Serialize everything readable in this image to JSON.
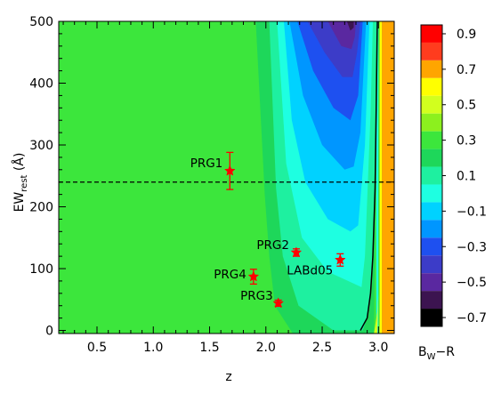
{
  "chart_data": {
    "type": "contour",
    "title": "",
    "x_axis": {
      "label": "z",
      "range": [
        0.16,
        3.14
      ],
      "ticks": [
        0.5,
        1.0,
        1.5,
        2.0,
        2.5,
        3.0
      ],
      "tick_labels": [
        "0.5",
        "1.0",
        "1.5",
        "2.0",
        "2.5",
        "3.0"
      ]
    },
    "y_axis": {
      "label_main": "EW",
      "label_sub": "rest",
      "label_unit": " (Å)",
      "range": [
        -5,
        500
      ],
      "ticks": [
        0,
        100,
        200,
        300,
        400,
        500
      ],
      "tick_labels": [
        "0",
        "100",
        "200",
        "300",
        "400",
        "500"
      ]
    },
    "colorbar": {
      "label_main": "B",
      "label_sub": "W",
      "label_suffix": "−R",
      "tick_labels": [
        "0.9",
        "0.7",
        "0.5",
        "0.3",
        "0.1",
        "−0.1",
        "−0.3",
        "−0.5",
        "−0.7"
      ],
      "levels": [
        {
          "from": 0.9,
          "to": 1.0,
          "color": "#ff0000"
        },
        {
          "from": 0.8,
          "to": 0.9,
          "color": "#ff3c1e"
        },
        {
          "from": 0.7,
          "to": 0.8,
          "color": "#ffa500"
        },
        {
          "from": 0.6,
          "to": 0.7,
          "color": "#ffff00"
        },
        {
          "from": 0.5,
          "to": 0.6,
          "color": "#d2ff1e"
        },
        {
          "from": 0.4,
          "to": 0.5,
          "color": "#8cf01e"
        },
        {
          "from": 0.3,
          "to": 0.4,
          "color": "#3ce63c"
        },
        {
          "from": 0.2,
          "to": 0.3,
          "color": "#1ed75a"
        },
        {
          "from": 0.1,
          "to": 0.2,
          "color": "#1ef0a0"
        },
        {
          "from": 0.0,
          "to": 0.1,
          "color": "#1effe1"
        },
        {
          "from": -0.1,
          "to": 0.0,
          "color": "#00d2ff"
        },
        {
          "from": -0.2,
          "to": -0.1,
          "color": "#0096ff"
        },
        {
          "from": -0.3,
          "to": -0.2,
          "color": "#1e50f0"
        },
        {
          "from": -0.4,
          "to": -0.3,
          "color": "#3c3cc8"
        },
        {
          "from": -0.5,
          "to": -0.4,
          "color": "#5a28a0"
        },
        {
          "from": -0.6,
          "to": -0.5,
          "color": "#3c1450"
        },
        {
          "from": -0.7,
          "to": -0.6,
          "color": "#000000"
        }
      ]
    },
    "reference_line": {
      "y": 240,
      "style": "dashed",
      "color": "#000000"
    },
    "curve": {
      "color": "#000000",
      "points": [
        [
          2.84,
          0
        ],
        [
          2.9,
          20
        ],
        [
          2.93,
          60
        ],
        [
          2.95,
          120
        ],
        [
          2.97,
          230
        ],
        [
          2.98,
          360
        ],
        [
          2.99,
          500
        ]
      ]
    },
    "points": [
      {
        "name": "PRG1",
        "x": 1.68,
        "y": 258,
        "yerr": 30
      },
      {
        "name": "PRG2",
        "x": 2.27,
        "y": 126,
        "yerr": 6
      },
      {
        "name": "PRG3",
        "x": 2.11,
        "y": 44,
        "yerr": 5
      },
      {
        "name": "PRG4",
        "x": 1.89,
        "y": 87,
        "yerr": 12
      },
      {
        "name": "LABd05",
        "x": 2.66,
        "y": 114,
        "yerr": 10
      }
    ],
    "marker_color": "#ff0000",
    "marker_shape": "star",
    "regions": [
      {
        "color": "#3ce63c",
        "polygon": [
          [
            0.16,
            -5
          ],
          [
            3.14,
            -5
          ],
          [
            3.14,
            500
          ],
          [
            0.16,
            500
          ]
        ]
      },
      {
        "color": "#1ed75a",
        "polygon": [
          [
            1.91,
            500
          ],
          [
            1.99,
            220
          ],
          [
            2.03,
            120
          ],
          [
            2.08,
            40
          ],
          [
            2.24,
            -5
          ],
          [
            2.96,
            -5
          ],
          [
            2.99,
            500
          ]
        ]
      },
      {
        "color": "#1ef0a0",
        "polygon": [
          [
            2.03,
            500
          ],
          [
            2.09,
            230
          ],
          [
            2.15,
            120
          ],
          [
            2.29,
            40
          ],
          [
            2.6,
            0
          ],
          [
            2.86,
            0
          ],
          [
            2.9,
            20
          ],
          [
            2.95,
            100
          ],
          [
            2.97,
            300
          ],
          [
            2.98,
            500
          ]
        ]
      },
      {
        "color": "#1effe1",
        "polygon": [
          [
            2.1,
            500
          ],
          [
            2.18,
            270
          ],
          [
            2.32,
            150
          ],
          [
            2.55,
            95
          ],
          [
            2.85,
            70
          ],
          [
            2.88,
            120
          ],
          [
            2.93,
            350
          ],
          [
            2.95,
            500
          ]
        ]
      },
      {
        "color": "#00d2ff",
        "polygon": [
          [
            2.16,
            500
          ],
          [
            2.23,
            340
          ],
          [
            2.35,
            240
          ],
          [
            2.55,
            180
          ],
          [
            2.75,
            160
          ],
          [
            2.82,
            170
          ],
          [
            2.88,
            300
          ],
          [
            2.92,
            500
          ]
        ]
      },
      {
        "color": "#0096ff",
        "polygon": [
          [
            2.21,
            500
          ],
          [
            2.33,
            380
          ],
          [
            2.5,
            300
          ],
          [
            2.7,
            260
          ],
          [
            2.78,
            265
          ],
          [
            2.84,
            320
          ],
          [
            2.89,
            500
          ]
        ]
      },
      {
        "color": "#1e50f0",
        "polygon": [
          [
            2.28,
            500
          ],
          [
            2.42,
            420
          ],
          [
            2.6,
            360
          ],
          [
            2.75,
            340
          ],
          [
            2.82,
            380
          ],
          [
            2.86,
            500
          ]
        ]
      },
      {
        "color": "#3c3cc8",
        "polygon": [
          [
            2.37,
            500
          ],
          [
            2.52,
            450
          ],
          [
            2.68,
            410
          ],
          [
            2.77,
            410
          ],
          [
            2.81,
            450
          ],
          [
            2.84,
            500
          ]
        ]
      },
      {
        "color": "#5a28a0",
        "polygon": [
          [
            2.55,
            500
          ],
          [
            2.67,
            460
          ],
          [
            2.76,
            455
          ],
          [
            2.79,
            475
          ],
          [
            2.8,
            500
          ]
        ]
      },
      {
        "color": "#3c1450",
        "polygon": [
          [
            2.72,
            500
          ],
          [
            2.75,
            485
          ],
          [
            2.78,
            490
          ],
          [
            2.78,
            500
          ]
        ]
      },
      {
        "color": "#1effe1",
        "polygon": [
          [
            2.98,
            -5
          ],
          [
            3.0,
            -5
          ],
          [
            3.0,
            500
          ],
          [
            2.98,
            500
          ]
        ]
      },
      {
        "color": "#3ce63c",
        "polygon": [
          [
            3.0,
            -5
          ],
          [
            3.01,
            -5
          ],
          [
            3.01,
            500
          ],
          [
            3.0,
            500
          ]
        ]
      },
      {
        "color": "#d2ff1e",
        "polygon": [
          [
            2.96,
            -5
          ],
          [
            2.99,
            -5
          ],
          [
            3.0,
            60
          ],
          [
            2.99,
            30
          ]
        ]
      },
      {
        "color": "#ffff00",
        "polygon": [
          [
            3.01,
            -5
          ],
          [
            3.03,
            -5
          ],
          [
            3.03,
            500
          ],
          [
            3.01,
            500
          ]
        ]
      },
      {
        "color": "#ffa500",
        "polygon": [
          [
            3.03,
            -5
          ],
          [
            3.14,
            -5
          ],
          [
            3.14,
            500
          ],
          [
            3.03,
            500
          ]
        ]
      }
    ]
  }
}
